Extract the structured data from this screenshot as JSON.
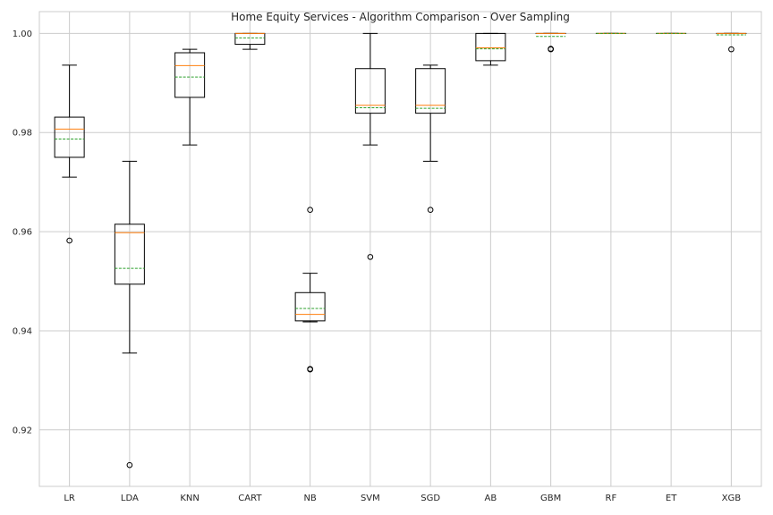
{
  "chart_data": {
    "type": "box",
    "title": "Home Equity Services - Algorithm Comparison - Over Sampling",
    "xlabel": "",
    "ylabel": "",
    "categories": [
      "LR",
      "LDA",
      "KNN",
      "CART",
      "NB",
      "SVM",
      "SGD",
      "AB",
      "GBM",
      "RF",
      "ET",
      "XGB"
    ],
    "yticks": [
      0.92,
      0.94,
      0.96,
      0.98,
      1.0
    ],
    "ytick_labels": [
      "0.92",
      "0.94",
      "0.96",
      "0.98",
      "1.00"
    ],
    "ylim": [
      0.9086,
      1.0044
    ],
    "grid": true,
    "boxes": [
      {
        "label": "LR",
        "whislo": 0.971,
        "q1": 0.975,
        "med": 0.9807,
        "mean": 0.9787,
        "q3": 0.9831,
        "whishi": 0.9936,
        "fliers": [
          0.9582
        ]
      },
      {
        "label": "LDA",
        "whislo": 0.9355,
        "q1": 0.9494,
        "med": 0.9598,
        "mean": 0.9526,
        "q3": 0.9615,
        "whishi": 0.9742,
        "fliers": [
          0.9129
        ]
      },
      {
        "label": "KNN",
        "whislo": 0.9775,
        "q1": 0.9871,
        "med": 0.9935,
        "mean": 0.9912,
        "q3": 0.9961,
        "whishi": 0.9968,
        "fliers": []
      },
      {
        "label": "CART",
        "whislo": 0.9968,
        "q1": 0.9978,
        "med": 1.0,
        "mean": 0.9991,
        "q3": 1.0,
        "whishi": 1.0,
        "fliers": []
      },
      {
        "label": "NB",
        "whislo": 0.9418,
        "q1": 0.942,
        "med": 0.9433,
        "mean": 0.9445,
        "q3": 0.9477,
        "whishi": 0.9516,
        "fliers": [
          0.9322,
          0.9323,
          0.9644
        ]
      },
      {
        "label": "SVM",
        "whislo": 0.9775,
        "q1": 0.9839,
        "med": 0.9855,
        "mean": 0.985,
        "q3": 0.9929,
        "whishi": 1.0,
        "fliers": [
          0.9549
        ]
      },
      {
        "label": "SGD",
        "whislo": 0.9742,
        "q1": 0.9839,
        "med": 0.9855,
        "mean": 0.9849,
        "q3": 0.9929,
        "whishi": 0.9936,
        "fliers": [
          0.9644
        ]
      },
      {
        "label": "AB",
        "whislo": 0.9936,
        "q1": 0.9945,
        "med": 0.9971,
        "mean": 0.9969,
        "q3": 1.0,
        "whishi": 1.0,
        "fliers": []
      },
      {
        "label": "GBM",
        "whislo": 1.0,
        "q1": 1.0,
        "med": 1.0,
        "mean": 0.9994,
        "q3": 1.0,
        "whishi": 1.0,
        "fliers": [
          0.9968,
          0.9969
        ]
      },
      {
        "label": "RF",
        "whislo": 1.0,
        "q1": 1.0,
        "med": 1.0,
        "mean": 1.0,
        "q3": 1.0,
        "whishi": 1.0,
        "fliers": []
      },
      {
        "label": "ET",
        "whislo": 1.0,
        "q1": 1.0,
        "med": 1.0,
        "mean": 1.0,
        "q3": 1.0,
        "whishi": 1.0,
        "fliers": []
      },
      {
        "label": "XGB",
        "whislo": 1.0,
        "q1": 1.0,
        "med": 1.0,
        "mean": 0.9997,
        "q3": 1.0,
        "whishi": 1.0,
        "fliers": [
          0.9968
        ]
      }
    ],
    "colors": {
      "box": "#000000",
      "median": "#ff7f0e",
      "mean": "#2ca02c",
      "grid": "#cccccc",
      "spine": "#cccccc",
      "text": "#262626",
      "background": "#ffffff"
    }
  }
}
